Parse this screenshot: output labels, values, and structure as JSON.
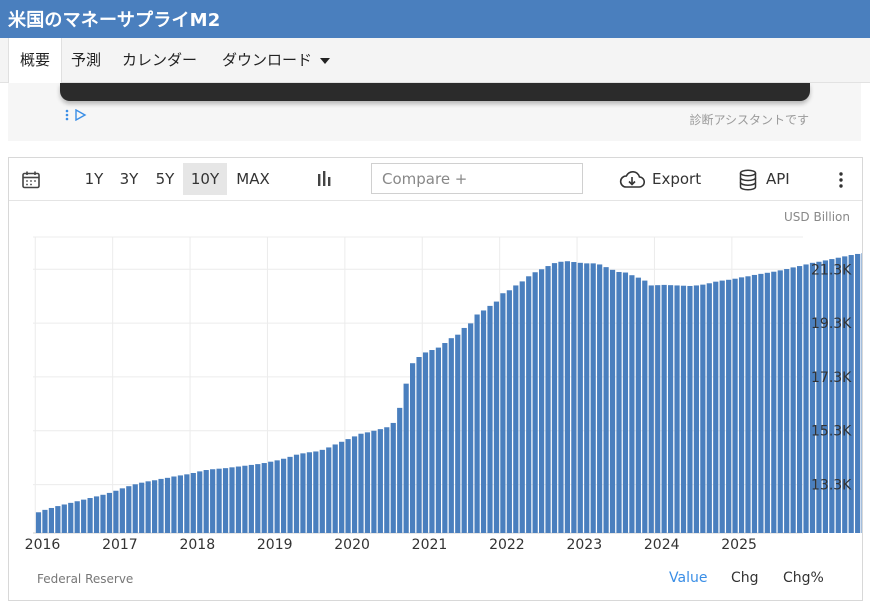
{
  "header": {
    "title": "米国のマネーサプライM2"
  },
  "tabs": [
    {
      "label": "概要"
    },
    {
      "label": "予測"
    },
    {
      "label": "カレンダー"
    },
    {
      "label": "ダウンロード"
    }
  ],
  "ad": {
    "note": "診断アシスタントです"
  },
  "toolbar": {
    "ranges": [
      "1Y",
      "3Y",
      "5Y",
      "10Y",
      "MAX"
    ],
    "selected_range": "10Y",
    "compare_placeholder": "Compare +",
    "export_label": "Export",
    "api_label": "API"
  },
  "chart": {
    "unit_label": "USD Billion",
    "source": "Federal Reserve",
    "view_buttons": [
      "Value",
      "Chg",
      "Chg%"
    ],
    "active_view": "Value",
    "bar_color": "#4a7fbe"
  },
  "chart_data": {
    "type": "bar",
    "unit": "USD Billion",
    "x_tick_labels": [
      "2016",
      "2017",
      "2018",
      "2019",
      "2020",
      "2021",
      "2022",
      "2023",
      "2024",
      "2025"
    ],
    "y_tick_labels": [
      "13.3K",
      "15.3K",
      "17.3K",
      "19.3K",
      "21.3K"
    ],
    "y_ticks": [
      13300,
      15300,
      17300,
      19300,
      21300
    ],
    "ylim": [
      11500,
      22500
    ],
    "start_year": 2016,
    "start_month": 1,
    "values": [
      12270,
      12360,
      12430,
      12500,
      12560,
      12620,
      12680,
      12740,
      12800,
      12860,
      12920,
      12990,
      13070,
      13160,
      13240,
      13310,
      13370,
      13420,
      13460,
      13510,
      13550,
      13600,
      13640,
      13680,
      13730,
      13790,
      13840,
      13870,
      13890,
      13910,
      13940,
      13970,
      14000,
      14030,
      14060,
      14100,
      14150,
      14200,
      14260,
      14330,
      14410,
      14460,
      14500,
      14530,
      14590,
      14680,
      14790,
      14890,
      14990,
      15090,
      15190,
      15240,
      15300,
      15360,
      15430,
      15590,
      16150,
      17050,
      17810,
      18040,
      18210,
      18300,
      18390,
      18560,
      18740,
      18870,
      19120,
      19290,
      19620,
      19770,
      19940,
      20100,
      20410,
      20520,
      20700,
      20850,
      21040,
      21190,
      21300,
      21420,
      21530,
      21580,
      21600,
      21570,
      21540,
      21520,
      21520,
      21480,
      21380,
      21280,
      21200,
      21180,
      21080,
      20990,
      20880,
      20700,
      20710,
      20720,
      20710,
      20700,
      20690,
      20680,
      20700,
      20730,
      20780,
      20840,
      20880,
      20910,
      20950,
      21000,
      21040,
      21090,
      21130,
      21170,
      21210,
      21260,
      21310,
      21370,
      21420,
      21480,
      21540,
      21580,
      21630,
      21680,
      21730,
      21780,
      21830,
      21870,
      21900,
      21920
    ]
  }
}
